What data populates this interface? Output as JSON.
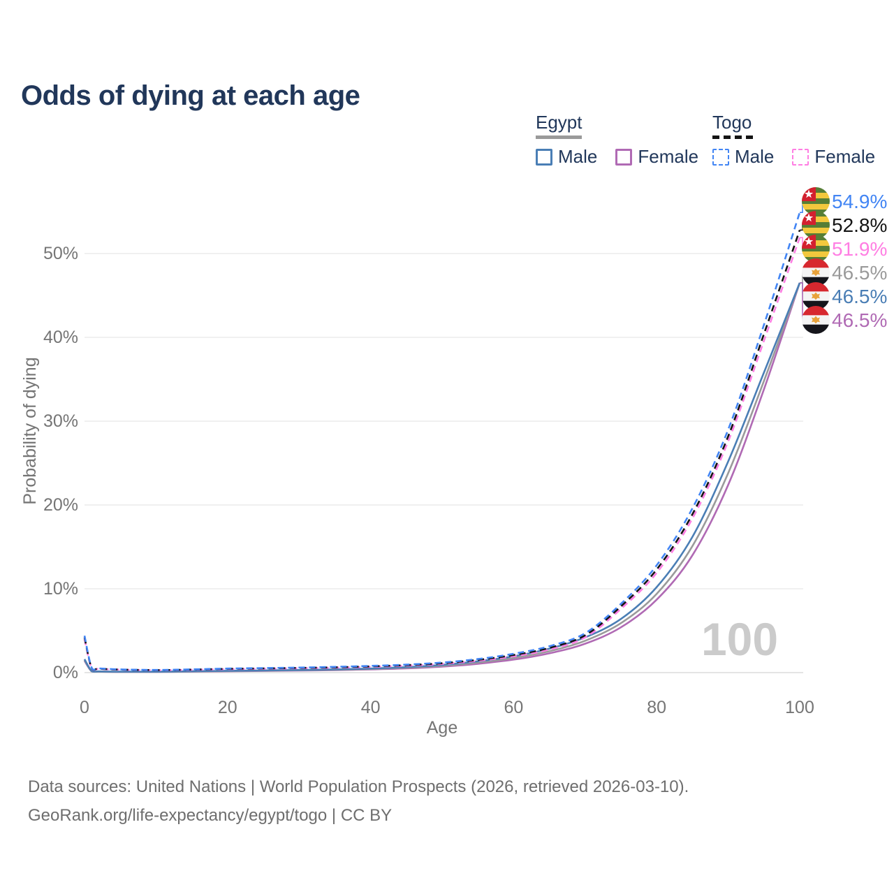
{
  "title": "Odds of dying at each age",
  "legend": {
    "groups": [
      {
        "country": "Egypt",
        "line_style": "solid",
        "line_color": "#9a9a9a",
        "items": [
          {
            "label": "Male",
            "color": "#4a7eb5",
            "dashed": false
          },
          {
            "label": "Female",
            "color": "#b06ab4",
            "dashed": false
          }
        ]
      },
      {
        "country": "Togo",
        "line_style": "dashed",
        "line_color": "#141414",
        "items": [
          {
            "label": "Male",
            "color": "#4285f4",
            "dashed": true
          },
          {
            "label": "Female",
            "color": "#ff7ee3",
            "dashed": true
          }
        ]
      }
    ]
  },
  "chart_data": {
    "type": "line",
    "title": "Odds of dying at each age",
    "xlabel": "Age",
    "ylabel": "Probability of dying",
    "xlim": [
      0,
      100
    ],
    "ylim": [
      0,
      57
    ],
    "xticks": [
      0,
      20,
      40,
      60,
      80,
      100
    ],
    "yticks": [
      0,
      10,
      20,
      30,
      40,
      50
    ],
    "ytick_suffix": "%",
    "grid": true,
    "watermark": "100",
    "ages": [
      0,
      1,
      2,
      5,
      10,
      15,
      20,
      25,
      30,
      35,
      40,
      45,
      50,
      55,
      60,
      65,
      70,
      75,
      80,
      85,
      90,
      95,
      100
    ],
    "series": [
      {
        "id": "egypt-female",
        "country": "Egypt",
        "sex": "Female",
        "color": "#b06ab4",
        "dashed": false,
        "values": [
          1.4,
          0.15,
          0.12,
          0.09,
          0.09,
          0.12,
          0.16,
          0.2,
          0.24,
          0.3,
          0.38,
          0.5,
          0.72,
          1.05,
          1.55,
          2.3,
          3.45,
          5.4,
          8.7,
          14.0,
          22.4,
          33.8,
          46.5
        ],
        "end_label": "46.5%",
        "label_row": 5,
        "flag": "egypt"
      },
      {
        "id": "egypt-both",
        "country": "Egypt",
        "sex": "Both",
        "color": "#9a9a9a",
        "dashed": false,
        "values": [
          1.5,
          0.16,
          0.13,
          0.1,
          0.1,
          0.14,
          0.19,
          0.23,
          0.28,
          0.34,
          0.43,
          0.58,
          0.82,
          1.2,
          1.75,
          2.55,
          3.8,
          5.9,
          9.4,
          15.1,
          23.8,
          34.8,
          46.5
        ],
        "end_label": "46.5%",
        "label_row": 3,
        "flag": "egypt"
      },
      {
        "id": "egypt-male",
        "country": "Egypt",
        "sex": "Male",
        "color": "#4a7eb5",
        "dashed": false,
        "values": [
          1.6,
          0.18,
          0.14,
          0.11,
          0.11,
          0.16,
          0.22,
          0.26,
          0.31,
          0.38,
          0.48,
          0.65,
          0.92,
          1.35,
          1.95,
          2.85,
          4.2,
          6.4,
          10.2,
          16.2,
          25.2,
          35.8,
          46.5
        ],
        "end_label": "46.5%",
        "label_row": 4,
        "flag": "egypt"
      },
      {
        "id": "togo-female",
        "country": "Togo",
        "sex": "Female",
        "color": "#ff7ee3",
        "dashed": true,
        "values": [
          4.0,
          0.52,
          0.44,
          0.34,
          0.28,
          0.33,
          0.41,
          0.46,
          0.52,
          0.58,
          0.68,
          0.82,
          1.03,
          1.4,
          1.95,
          2.75,
          4.2,
          7.6,
          11.9,
          18.4,
          27.6,
          39.6,
          51.9
        ],
        "end_label": "51.9%",
        "label_row": 2,
        "flag": "togo"
      },
      {
        "id": "togo-both",
        "country": "Togo",
        "sex": "Both",
        "color": "#141414",
        "dashed": true,
        "values": [
          4.2,
          0.56,
          0.47,
          0.36,
          0.3,
          0.36,
          0.45,
          0.5,
          0.56,
          0.63,
          0.74,
          0.89,
          1.12,
          1.52,
          2.1,
          2.95,
          4.45,
          7.9,
          12.3,
          18.9,
          28.2,
          40.4,
          52.8
        ],
        "end_label": "52.8%",
        "label_row": 1,
        "flag": "togo"
      },
      {
        "id": "togo-male",
        "country": "Togo",
        "sex": "Male",
        "color": "#4285f4",
        "dashed": true,
        "values": [
          4.4,
          0.6,
          0.5,
          0.38,
          0.32,
          0.38,
          0.48,
          0.54,
          0.6,
          0.68,
          0.8,
          0.95,
          1.2,
          1.62,
          2.25,
          3.15,
          4.7,
          8.2,
          12.8,
          19.6,
          29.0,
          41.5,
          54.9
        ],
        "end_label": "54.9%",
        "label_row": 0,
        "flag": "togo"
      }
    ]
  },
  "footer": {
    "line1": "Data sources: United Nations | World Population Prospects (2026, retrieved 2026-03-10).",
    "line2": "GeoRank.org/life-expectancy/egypt/togo | CC BY"
  }
}
